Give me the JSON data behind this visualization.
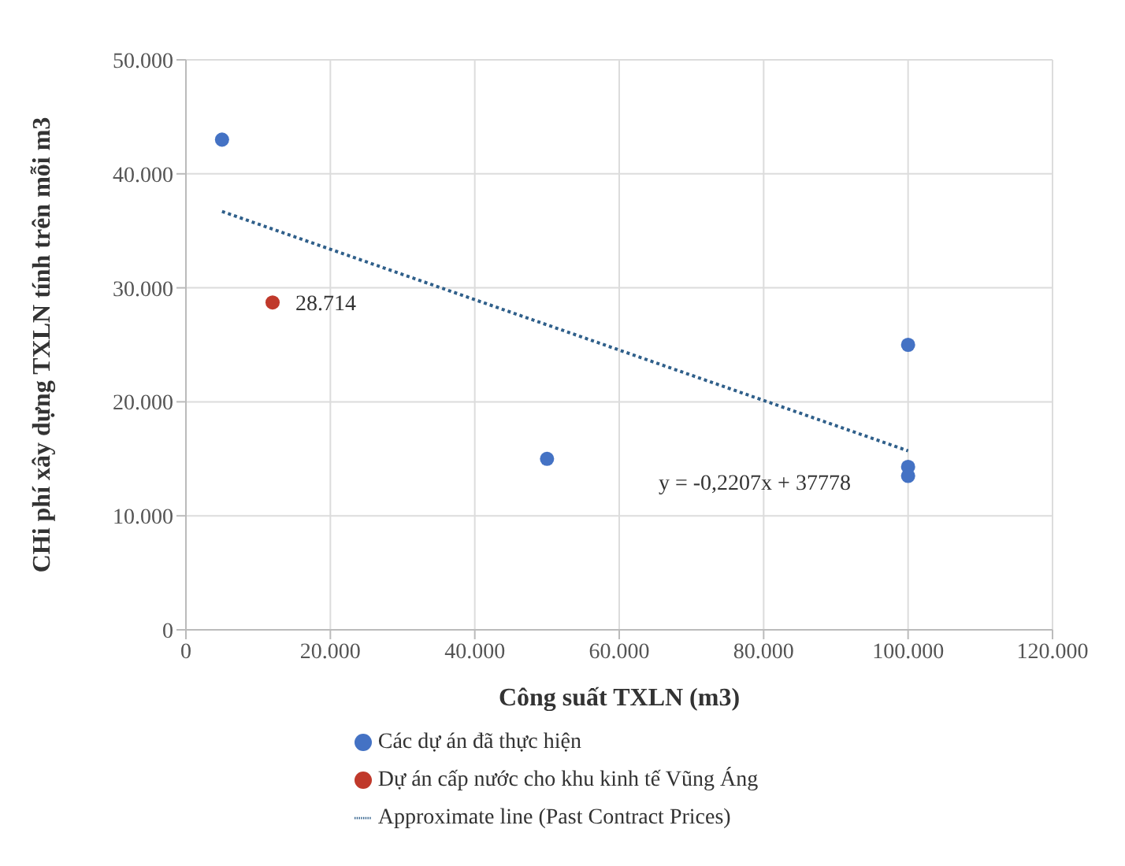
{
  "chart_data": {
    "type": "scatter",
    "xlabel": "Công suất TXLN (m3)",
    "ylabel": "CHi phí xây dựng TXLN tính trên mỗi m3",
    "xlim": [
      0,
      120000
    ],
    "xticks": [
      {
        "value": 0,
        "label": "0"
      },
      {
        "value": 20000,
        "label": "20.000"
      },
      {
        "value": 40000,
        "label": "40.000"
      },
      {
        "value": 60000,
        "label": "60.000"
      },
      {
        "value": 80000,
        "label": "80.000"
      },
      {
        "value": 100000,
        "label": "100.000"
      },
      {
        "value": 120000,
        "label": "120.000"
      }
    ],
    "ylim": [
      0,
      50000
    ],
    "yticks": [
      {
        "value": 0,
        "label": "0"
      },
      {
        "value": 10000,
        "label": "10.000"
      },
      {
        "value": 20000,
        "label": "20.000"
      },
      {
        "value": 30000,
        "label": "30.000"
      },
      {
        "value": 40000,
        "label": "40.000"
      },
      {
        "value": 50000,
        "label": "50.000"
      }
    ],
    "grid": true,
    "legend": "bottom",
    "marker": "circle",
    "annotations": [
      "y = -0,2207x + 37778"
    ],
    "series": [
      {
        "name": "Các dự án đã thực hiện",
        "color": "#4472c4",
        "x": [
          5000,
          50000,
          100000,
          100000,
          100000
        ],
        "values": [
          43000,
          15000,
          25000,
          14300,
          13500
        ]
      },
      {
        "name": "Dự án cấp nước cho khu kinh tế Vũng Áng",
        "color": "#c0392b",
        "x": [
          12000
        ],
        "values": [
          28714
        ],
        "value_labels": [
          "28.714"
        ]
      },
      {
        "name": "Approximate line (Past Contract Prices)",
        "type": "line",
        "color": "#2f5f8a",
        "line_style": "dotted",
        "marker": "none",
        "x": [
          5000,
          100000
        ],
        "values": [
          36700,
          15700
        ]
      }
    ]
  }
}
